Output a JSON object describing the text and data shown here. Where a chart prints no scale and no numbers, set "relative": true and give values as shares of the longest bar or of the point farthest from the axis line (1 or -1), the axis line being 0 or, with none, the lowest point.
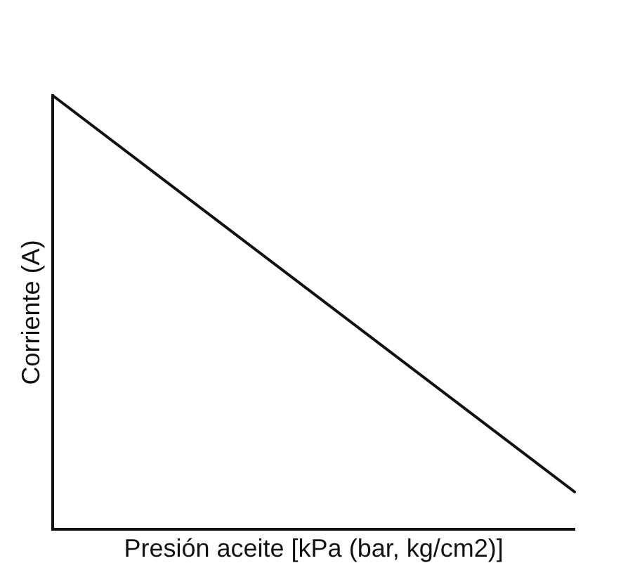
{
  "chart_data": {
    "type": "line",
    "xlabel": "Presión aceite [kPa (bar, kg/cm2)]",
    "ylabel": "Corriente (A)",
    "categories": [
      null,
      null
    ],
    "relative": true,
    "series": [
      {
        "color": "#111111",
        "values": [
          1,
          0.086
        ]
      }
    ],
    "marker": "none",
    "line_style": "solid",
    "grid": false,
    "legend": false
  }
}
